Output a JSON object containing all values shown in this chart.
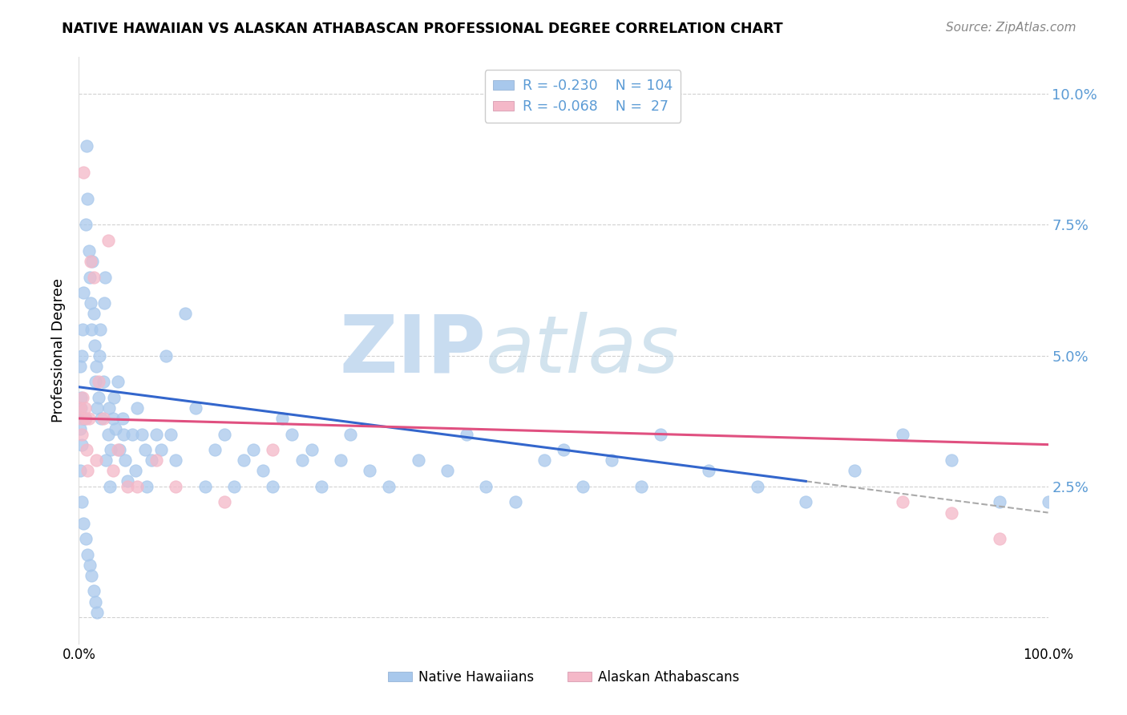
{
  "title": "NATIVE HAWAIIAN VS ALASKAN ATHABASCAN PROFESSIONAL DEGREE CORRELATION CHART",
  "source": "Source: ZipAtlas.com",
  "ylabel": "Professional Degree",
  "xmin": 0.0,
  "xmax": 1.0,
  "ymin": -0.005,
  "ymax": 0.107,
  "yticks": [
    0.0,
    0.025,
    0.05,
    0.075,
    0.1
  ],
  "ytick_labels": [
    "",
    "2.5%",
    "5.0%",
    "7.5%",
    "10.0%"
  ],
  "legend_r1": "R = -0.230",
  "legend_n1": "N = 104",
  "legend_r2": "R = -0.068",
  "legend_n2": "N =  27",
  "color_blue": "#A8C8EC",
  "color_pink": "#F4B8C8",
  "color_blue_line": "#3366CC",
  "color_pink_line": "#E05080",
  "color_axis_label": "#5B9BD5",
  "watermark_zip": "ZIP",
  "watermark_atlas": "atlas",
  "trend1_start_x": 0.0,
  "trend1_start_y": 0.044,
  "trend1_end_x": 0.75,
  "trend1_end_y": 0.026,
  "trend1_dash_start_x": 0.75,
  "trend1_dash_start_y": 0.026,
  "trend1_dash_end_x": 1.0,
  "trend1_dash_end_y": 0.02,
  "trend2_start_x": 0.0,
  "trend2_start_y": 0.038,
  "trend2_end_x": 1.0,
  "trend2_end_y": 0.033,
  "blue_scatter_x": [
    0.001,
    0.002,
    0.003,
    0.004,
    0.005,
    0.006,
    0.007,
    0.008,
    0.009,
    0.01,
    0.011,
    0.012,
    0.013,
    0.014,
    0.015,
    0.016,
    0.017,
    0.018,
    0.019,
    0.02,
    0.021,
    0.022,
    0.023,
    0.025,
    0.026,
    0.027,
    0.028,
    0.03,
    0.031,
    0.032,
    0.033,
    0.035,
    0.036,
    0.038,
    0.04,
    0.042,
    0.045,
    0.046,
    0.048,
    0.05,
    0.055,
    0.058,
    0.06,
    0.065,
    0.068,
    0.07,
    0.075,
    0.08,
    0.085,
    0.09,
    0.095,
    0.1,
    0.11,
    0.12,
    0.13,
    0.14,
    0.15,
    0.16,
    0.17,
    0.18,
    0.19,
    0.2,
    0.21,
    0.22,
    0.23,
    0.24,
    0.25,
    0.27,
    0.28,
    0.3,
    0.32,
    0.35,
    0.38,
    0.4,
    0.42,
    0.45,
    0.48,
    0.5,
    0.52,
    0.55,
    0.58,
    0.6,
    0.65,
    0.7,
    0.75,
    0.8,
    0.85,
    0.9,
    0.95,
    1.0,
    0.001,
    0.002,
    0.003,
    0.004,
    0.001,
    0.003,
    0.005,
    0.007,
    0.009,
    0.011,
    0.013,
    0.015,
    0.017,
    0.019
  ],
  "blue_scatter_y": [
    0.048,
    0.042,
    0.05,
    0.055,
    0.062,
    0.038,
    0.075,
    0.09,
    0.08,
    0.07,
    0.065,
    0.06,
    0.055,
    0.068,
    0.058,
    0.052,
    0.045,
    0.048,
    0.04,
    0.042,
    0.05,
    0.055,
    0.038,
    0.045,
    0.06,
    0.065,
    0.03,
    0.035,
    0.04,
    0.025,
    0.032,
    0.038,
    0.042,
    0.036,
    0.045,
    0.032,
    0.038,
    0.035,
    0.03,
    0.026,
    0.035,
    0.028,
    0.04,
    0.035,
    0.032,
    0.025,
    0.03,
    0.035,
    0.032,
    0.05,
    0.035,
    0.03,
    0.058,
    0.04,
    0.025,
    0.032,
    0.035,
    0.025,
    0.03,
    0.032,
    0.028,
    0.025,
    0.038,
    0.035,
    0.03,
    0.032,
    0.025,
    0.03,
    0.035,
    0.028,
    0.025,
    0.03,
    0.028,
    0.035,
    0.025,
    0.022,
    0.03,
    0.032,
    0.025,
    0.03,
    0.025,
    0.035,
    0.028,
    0.025,
    0.022,
    0.028,
    0.035,
    0.03,
    0.022,
    0.022,
    0.036,
    0.04,
    0.033,
    0.038,
    0.028,
    0.022,
    0.018,
    0.015,
    0.012,
    0.01,
    0.008,
    0.005,
    0.003,
    0.001
  ],
  "pink_scatter_x": [
    0.001,
    0.002,
    0.003,
    0.004,
    0.005,
    0.006,
    0.007,
    0.008,
    0.009,
    0.01,
    0.012,
    0.015,
    0.018,
    0.02,
    0.025,
    0.03,
    0.035,
    0.04,
    0.05,
    0.06,
    0.08,
    0.1,
    0.15,
    0.2,
    0.85,
    0.9,
    0.95
  ],
  "pink_scatter_y": [
    0.04,
    0.038,
    0.035,
    0.042,
    0.085,
    0.04,
    0.038,
    0.032,
    0.028,
    0.038,
    0.068,
    0.065,
    0.03,
    0.045,
    0.038,
    0.072,
    0.028,
    0.032,
    0.025,
    0.025,
    0.03,
    0.025,
    0.022,
    0.032,
    0.022,
    0.02,
    0.015
  ]
}
